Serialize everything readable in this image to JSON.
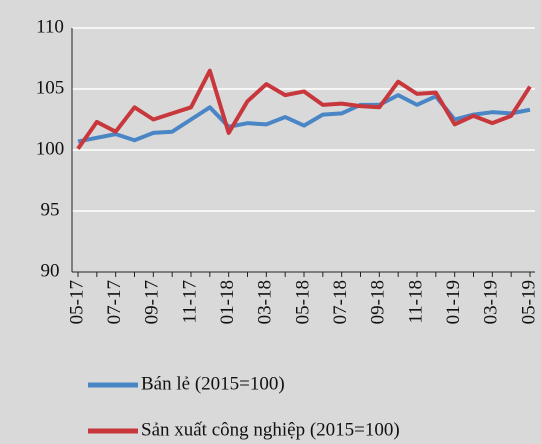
{
  "chart_data": {
    "type": "line",
    "categories": [
      "05-17",
      null,
      "07-17",
      null,
      "09-17",
      null,
      "11-17",
      null,
      "01-18",
      null,
      "03-18",
      null,
      "05-18",
      null,
      "07-18",
      null,
      "09-18",
      null,
      "11-18",
      null,
      "01-19",
      null,
      "03-19",
      null,
      "05-19"
    ],
    "series": [
      {
        "name": "Bán lẻ (2015=100)",
        "color": "#4a86c5",
        "values": [
          100.7,
          101.0,
          101.3,
          100.8,
          101.4,
          101.5,
          102.5,
          103.5,
          101.9,
          102.2,
          102.1,
          102.7,
          102.0,
          102.9,
          103.0,
          103.7,
          103.7,
          104.5,
          103.7,
          104.4,
          102.5,
          102.9,
          103.1,
          103.0,
          103.3
        ]
      },
      {
        "name": "Sản xuất công nghiệp (2015=100)",
        "color": "#c8373c",
        "values": [
          100.1,
          102.3,
          101.5,
          103.5,
          102.5,
          103.0,
          103.5,
          106.5,
          101.4,
          104.0,
          105.4,
          104.5,
          104.8,
          103.7,
          103.8,
          103.6,
          103.5,
          105.6,
          104.6,
          104.7,
          102.1,
          102.8,
          102.2,
          102.8,
          105.2
        ]
      }
    ],
    "ylim": [
      90,
      110
    ],
    "yticks": [
      90,
      95,
      100,
      105,
      110
    ],
    "grid": true,
    "legend": "bottom"
  }
}
